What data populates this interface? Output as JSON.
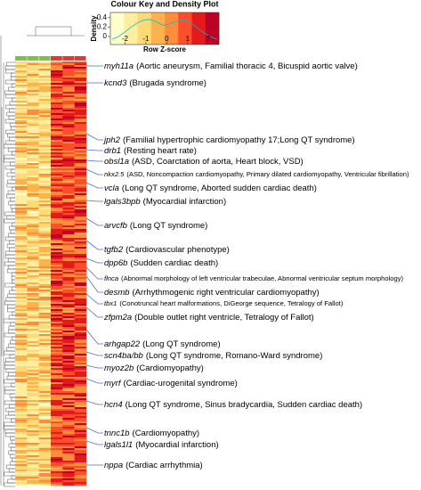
{
  "chart_data": {
    "type": "heatmap",
    "color_key": {
      "title": "Colour Key and Density Plot",
      "ylabel": "Density",
      "xlabel": "Row Z-score",
      "xlim": [
        -2.7,
        2.5
      ],
      "xticks": [
        -2,
        -1,
        0,
        1,
        2
      ],
      "ylim": [
        -0.17,
        0.51
      ],
      "yticks": [
        0,
        0.2,
        0.4
      ]
    },
    "annotations": [
      {
        "gene": "myh11a",
        "text": "(Aortic aneurysm, Familial thoracic 4, Bicuspid aortic valve)"
      },
      {
        "gene": "kcnd3",
        "text": "(Brugada syndrome)"
      },
      {
        "gene": "jph2",
        "text": "(Familial hypertrophic cardiomyopathy 17;Long QT syndrome)"
      },
      {
        "gene": "drb1",
        "text": "(Resting heart rate)"
      },
      {
        "gene": "obsl1a",
        "text": "(ASD, Coarctation of aorta, Heart block, VSD)"
      },
      {
        "gene": "nkx2.5",
        "text": "(ASD, Noncompaction cardiomyopathy, Primary dilated cardiomyopathy, Ventricular fibrillation)"
      },
      {
        "gene": "vcla",
        "text": "(Long QT syndrome, Aborted sudden cardiac death)"
      },
      {
        "gene": "lgals3bpb",
        "text": "(Myocardial infarction)"
      },
      {
        "gene": "arvcfb",
        "text": "(Long QT syndrome)"
      },
      {
        "gene": "tgfb2",
        "text": "(Cardiovascular phenotype)"
      },
      {
        "gene": "dpp6b",
        "text": "(Sudden cardiac death)"
      },
      {
        "gene": "flnca",
        "text": "(Abnormal morphology of left ventricular trabeculae, Abnormal ventricular septum morphology)"
      },
      {
        "gene": "desmb",
        "text": "(Arrhythmogenic right ventricular cardiomyopathy)"
      },
      {
        "gene": "tbx1",
        "text": "(Conotruncal heart malformations, DiGeorge sequence, Tetralogy of Fallot)"
      },
      {
        "gene": "zfpm2a",
        "text": "(Double outlet right ventricle, Tetralogy of Fallot)"
      },
      {
        "gene": "arhgap22",
        "text": "(Long QT syndrome)"
      },
      {
        "gene": "scn4ba/bb",
        "text": "(Long QT syndrome, Romano-Ward syndrome)"
      },
      {
        "gene": "myoz2b",
        "text": "(Cardiomyopathy)"
      },
      {
        "gene": "myrf",
        "text": "(Cardiac-urogenital syndrome)"
      },
      {
        "gene": "hcn4",
        "text": "(Long QT syndrome, Sinus bradycardia, Sudden cardiac death)"
      },
      {
        "gene": "tnnc1b",
        "text": "(Cardiomyopathy)"
      },
      {
        "gene": "lgals1l1",
        "text": "(Myocardial infarction)"
      },
      {
        "gene": "nppa",
        "text": "(Cardiac arrhythmia)"
      }
    ]
  }
}
